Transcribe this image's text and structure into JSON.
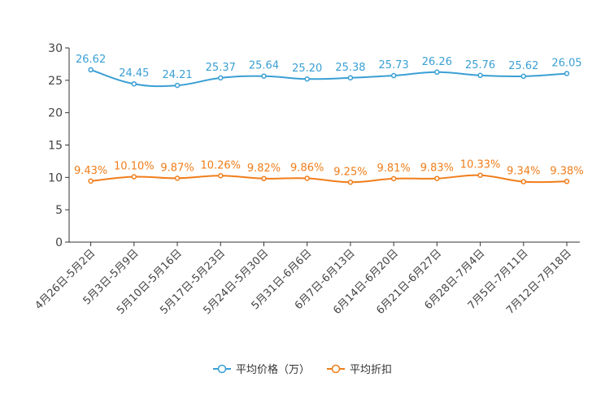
{
  "chart_data": {
    "type": "line",
    "title": "",
    "xlabel": "",
    "ylabel": "",
    "ylim": [
      0,
      30
    ],
    "yticks": [
      0,
      5,
      10,
      15,
      20,
      25,
      30
    ],
    "ytick_labels": [
      "0",
      "5",
      "10",
      "15",
      "20",
      "25",
      "30"
    ],
    "grid": false,
    "legend_position": "bottom-center",
    "categories": [
      "4月26日-5月2日",
      "5月3日-5月9日",
      "5月10日-5月16日",
      "5月17日-5月23日",
      "5月24日-5月30日",
      "5月31日-6月6日",
      "6月7日-6月13日",
      "6月14日-6月20日",
      "6月21日-6月27日",
      "6月28日-7月4日",
      "7月5日-7月11日",
      "7月12日-7月18日"
    ],
    "series": [
      {
        "name": "平均价格（万）",
        "color": "#3a9fd4",
        "values": [
          26.62,
          24.45,
          24.21,
          25.37,
          25.64,
          25.2,
          25.38,
          25.73,
          26.26,
          25.76,
          25.62,
          26.05
        ],
        "labels": [
          "26.62",
          "24.45",
          "24.21",
          "25.37",
          "25.64",
          "25.20",
          "25.38",
          "25.73",
          "26.26",
          "25.76",
          "25.62",
          "26.05"
        ]
      },
      {
        "name": "平均折扣",
        "color": "#f07d1a",
        "values": [
          9.43,
          10.1,
          9.87,
          10.26,
          9.82,
          9.86,
          9.25,
          9.81,
          9.83,
          10.33,
          9.34,
          9.38
        ],
        "labels": [
          "9.43%",
          "10.10%",
          "9.87%",
          "10.26%",
          "9.82%",
          "9.86%",
          "9.25%",
          "9.81%",
          "9.83%",
          "10.33%",
          "9.34%",
          "9.38%"
        ]
      }
    ]
  }
}
